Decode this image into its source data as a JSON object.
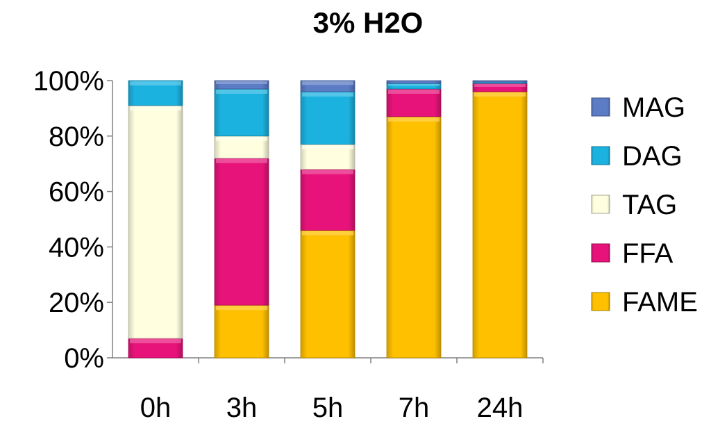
{
  "chart_data": {
    "type": "bar",
    "stacked": true,
    "normalized": true,
    "title": "3% H2O",
    "xlabel": "",
    "ylabel": "",
    "ylim": [
      0,
      100
    ],
    "y_ticks": [
      "0%",
      "20%",
      "40%",
      "60%",
      "80%",
      "100%"
    ],
    "y_tick_values": [
      0,
      20,
      40,
      60,
      80,
      100
    ],
    "categories": [
      "0h",
      "3h",
      "5h",
      "7h",
      "24h"
    ],
    "series": [
      {
        "name": "FAME",
        "color": "#FFC000",
        "values": [
          0,
          19,
          46,
          87,
          96
        ]
      },
      {
        "name": "FFA",
        "color": "#E8137A",
        "values": [
          7,
          53,
          22,
          10,
          3
        ]
      },
      {
        "name": "TAG",
        "color": "#FFFFE0",
        "values": [
          84,
          8,
          9,
          0,
          0
        ]
      },
      {
        "name": "DAG",
        "color": "#1CB2E0",
        "values": [
          9,
          17,
          19,
          2,
          0.5
        ]
      },
      {
        "name": "MAG",
        "color": "#5C7CC6",
        "values": [
          0,
          3,
          4,
          1,
          0.5
        ]
      }
    ],
    "legend_order": [
      "MAG",
      "DAG",
      "TAG",
      "FFA",
      "FAME"
    ],
    "legend_position": "right",
    "grid": false
  }
}
